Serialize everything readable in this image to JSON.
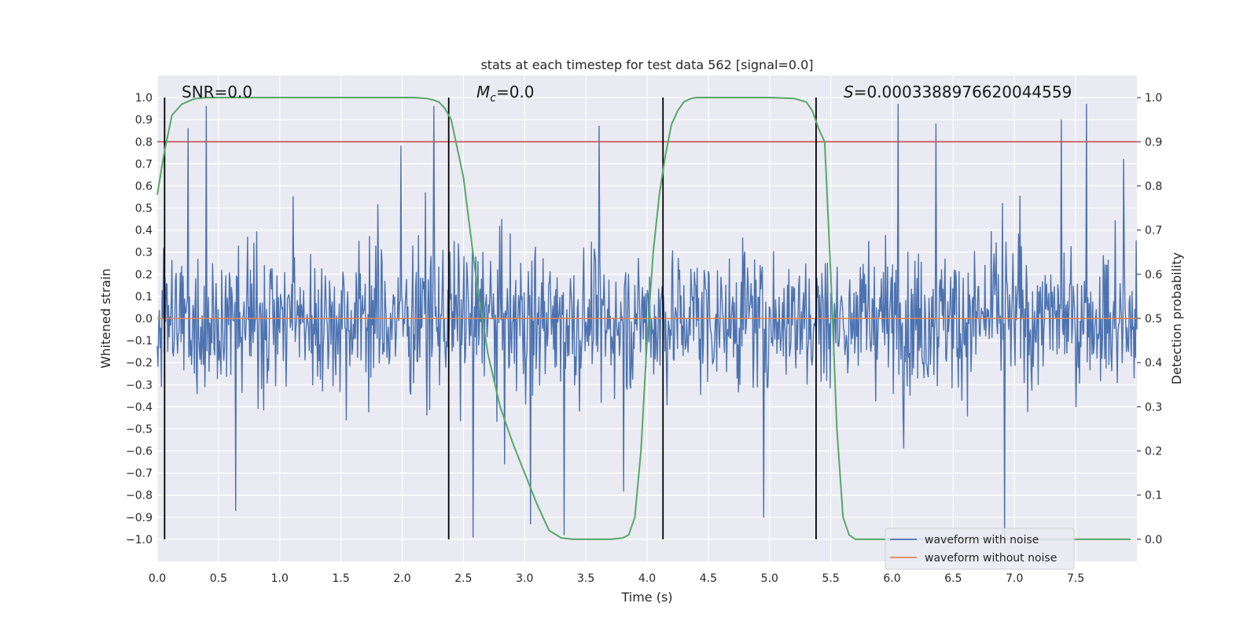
{
  "chart_data": {
    "type": "line",
    "title": "stats at each timestep for test data 562 [signal=0.0]",
    "xlabel": "Time (s)",
    "ylabel": "Whitened strain",
    "y2label": "Detection probability",
    "xlim": [
      0.0,
      8.0
    ],
    "ylim": [
      -1.1,
      1.1
    ],
    "y2lim": [
      -0.05,
      1.05
    ],
    "x_ticks": [
      0.0,
      0.5,
      1.0,
      1.5,
      2.0,
      2.5,
      3.0,
      3.5,
      4.0,
      4.5,
      5.0,
      5.5,
      6.0,
      6.5,
      7.0,
      7.5
    ],
    "x_tick_labels": [
      "0.0",
      "0.5",
      "1.0",
      "1.5",
      "2.0",
      "2.5",
      "3.0",
      "3.5",
      "4.0",
      "4.5",
      "5.0",
      "5.5",
      "6.0",
      "6.5",
      "7.0",
      "7.5"
    ],
    "y_ticks": [
      1.0,
      0.9,
      0.8,
      0.7,
      0.6,
      0.5,
      0.4,
      0.3,
      0.2,
      0.1,
      0.0,
      -0.1,
      -0.2,
      -0.3,
      -0.4,
      -0.5,
      -0.6,
      -0.7,
      -0.8,
      -0.9,
      -1.0
    ],
    "y_tick_labels": [
      "1.0",
      "0.9",
      "0.8",
      "0.7",
      "0.6",
      "0.5",
      "0.4",
      "0.3",
      "0.2",
      "0.1",
      "0.0",
      "−0.1",
      "−0.2",
      "−0.3",
      "−0.4",
      "−0.5",
      "−0.6",
      "−0.7",
      "−0.8",
      "−0.9",
      "−1.0"
    ],
    "y2_ticks": [
      1.0,
      0.9,
      0.8,
      0.7,
      0.6,
      0.5,
      0.4,
      0.3,
      0.2,
      0.1,
      0.0
    ],
    "y2_tick_labels": [
      "1.0",
      "0.9",
      "0.8",
      "0.7",
      "0.6",
      "0.5",
      "0.4",
      "0.3",
      "0.2",
      "0.1",
      "0.0"
    ],
    "grid": true,
    "legend_position": "lower-right",
    "annotations": {
      "snr": "SNR=0.0",
      "mc_symbol": "M",
      "mc_subscript": "c",
      "mc_value": "=0.0",
      "s_symbol": "S",
      "s_value": "=0.0003388976620044559"
    },
    "threshold_probability": 0.9,
    "vertical_markers": [
      0.06,
      2.38,
      4.13,
      5.38
    ],
    "series": [
      {
        "name": "waveform with noise",
        "color": "#4c72b0",
        "axis": "left",
        "kind": "noise",
        "x_range": [
          0.0,
          8.0
        ],
        "samples": 1400,
        "spikes": [
          [
            0.4,
            0.96
          ],
          [
            2.26,
            0.96
          ],
          [
            4.95,
            -0.9
          ],
          [
            6.05,
            0.97
          ],
          [
            7.59,
            0.97
          ],
          [
            6.92,
            -0.99
          ],
          [
            2.58,
            -0.99
          ],
          [
            3.32,
            -0.98
          ],
          [
            0.25,
            0.86
          ],
          [
            3.61,
            0.87
          ],
          [
            7.38,
            0.9
          ],
          [
            6.36,
            0.88
          ],
          [
            1.99,
            0.78
          ],
          [
            0.64,
            -0.87
          ],
          [
            3.05,
            -0.93
          ]
        ]
      },
      {
        "name": "waveform without noise",
        "color": "#dd8452",
        "axis": "left",
        "kind": "flat",
        "value": 0.0
      },
      {
        "name": "detection probability",
        "color": "#55a868",
        "axis": "right",
        "kind": "line",
        "x": [
          0.0,
          0.06,
          0.12,
          0.2,
          0.3,
          0.4,
          0.5,
          0.6,
          0.8,
          1.2,
          1.6,
          2.0,
          2.1,
          2.2,
          2.25,
          2.3,
          2.35,
          2.4,
          2.5,
          2.6,
          2.7,
          2.8,
          2.9,
          3.0,
          3.1,
          3.2,
          3.3,
          3.4,
          3.5,
          3.6,
          3.7,
          3.8,
          3.85,
          3.9,
          3.95,
          4.0,
          4.05,
          4.1,
          4.15,
          4.2,
          4.25,
          4.3,
          4.35,
          4.4,
          4.5,
          4.8,
          5.0,
          5.2,
          5.3,
          5.35,
          5.4,
          5.45,
          5.5,
          5.55,
          5.6,
          5.65,
          5.7,
          5.8,
          6.0,
          7.0,
          7.95
        ],
        "values": [
          0.78,
          0.88,
          0.96,
          0.985,
          0.997,
          1.0,
          1.0,
          1.0,
          1.0,
          1.0,
          1.0,
          1.0,
          1.0,
          0.998,
          0.995,
          0.99,
          0.975,
          0.95,
          0.82,
          0.6,
          0.42,
          0.3,
          0.22,
          0.15,
          0.08,
          0.02,
          0.003,
          0.0,
          0.0,
          0.0,
          0.0,
          0.003,
          0.01,
          0.05,
          0.2,
          0.45,
          0.65,
          0.78,
          0.87,
          0.94,
          0.97,
          0.99,
          0.997,
          1.0,
          1.0,
          1.0,
          1.0,
          0.998,
          0.99,
          0.97,
          0.93,
          0.9,
          0.6,
          0.25,
          0.05,
          0.01,
          0.0,
          0.0,
          0.0,
          0.0,
          0.0
        ]
      }
    ]
  }
}
